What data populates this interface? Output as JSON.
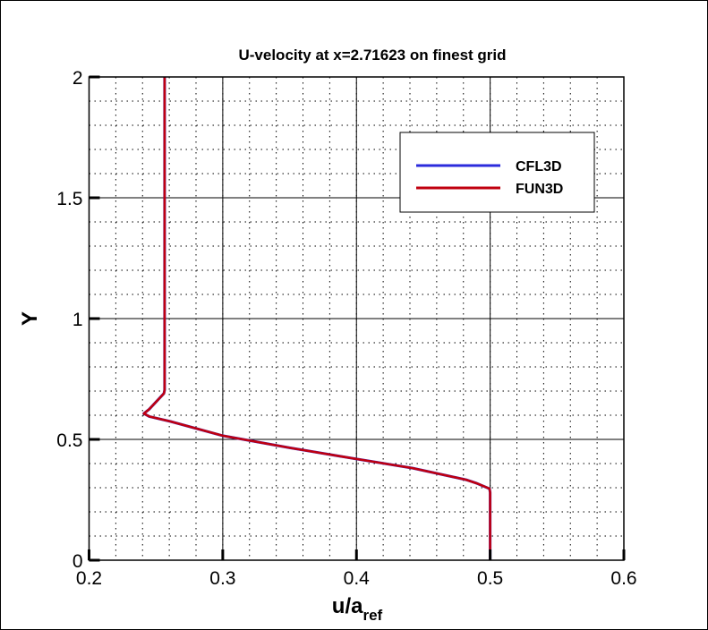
{
  "chart_data": {
    "type": "line",
    "title": "U-velocity at x=2.71623 on finest grid",
    "xlabel": "u/a",
    "xlabel_subscript": "ref",
    "ylabel": "Y",
    "xlim": [
      0.2,
      0.6
    ],
    "ylim": [
      0,
      2
    ],
    "xticks": [
      "0.2",
      "0.3",
      "0.4",
      "0.5",
      "0.6"
    ],
    "yticks": [
      "0",
      "0.5",
      "1",
      "1.5",
      "2"
    ],
    "grid": {
      "major": true,
      "minor": true,
      "minor_style": "dotted"
    },
    "legend_position": "top-right",
    "series": [
      {
        "name": "CFL3D",
        "color": "#2b2bdc",
        "x": [
          0.5,
          0.5,
          0.4995,
          0.49,
          0.482,
          0.442,
          0.4,
          0.35,
          0.3,
          0.261,
          0.245,
          0.241,
          0.245,
          0.256,
          0.2565,
          0.2565
        ],
        "y": [
          0,
          0.28,
          0.296,
          0.318,
          0.333,
          0.381,
          0.419,
          0.465,
          0.515,
          0.574,
          0.595,
          0.607,
          0.625,
          0.69,
          0.704,
          2.0
        ]
      },
      {
        "name": "FUN3D",
        "color": "#c0000f",
        "x": [
          0.5,
          0.5,
          0.4995,
          0.49,
          0.482,
          0.442,
          0.4,
          0.35,
          0.3,
          0.261,
          0.245,
          0.241,
          0.245,
          0.256,
          0.2565,
          0.2565
        ],
        "y": [
          0,
          0.28,
          0.296,
          0.318,
          0.333,
          0.381,
          0.419,
          0.465,
          0.515,
          0.574,
          0.595,
          0.607,
          0.625,
          0.69,
          0.704,
          2.0
        ]
      }
    ]
  }
}
